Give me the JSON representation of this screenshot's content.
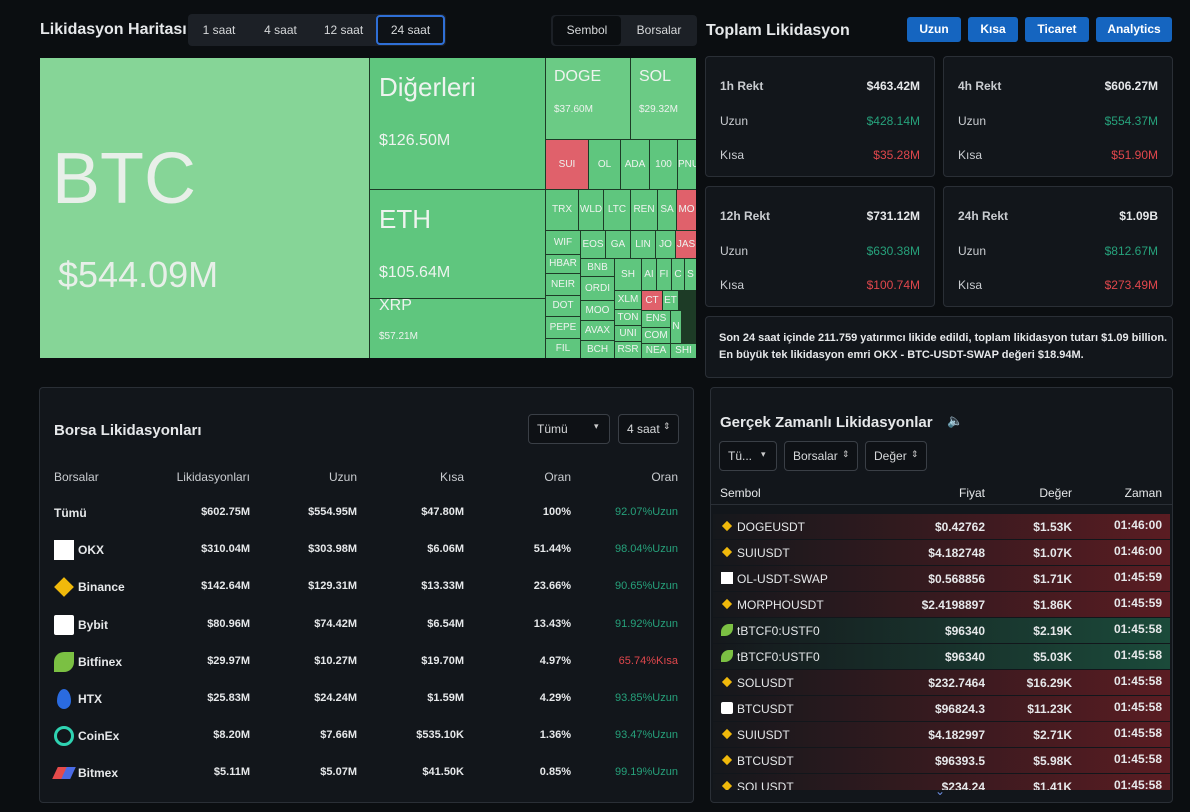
{
  "header": {
    "title": "Likidasyon Haritası",
    "time_tabs": [
      "1 saat",
      "4 saat",
      "12 saat",
      "24 saat"
    ],
    "view_tabs": [
      "Sembol",
      "Borsalar"
    ],
    "total_title": "Toplam Likidasyon",
    "buttons": [
      "Uzun",
      "Kısa",
      "Ticaret",
      "Analytics"
    ]
  },
  "treemap": {
    "tiles": [
      {
        "label": "BTC",
        "value": "$544.09M",
        "color": "#86d597"
      },
      {
        "label": "Diğerleri",
        "value": "$126.50M",
        "color": "#5fc67e"
      },
      {
        "label": "ETH",
        "value": "$105.64M",
        "color": "#5fc67e"
      },
      {
        "label": "XRP",
        "value": "$57.21M",
        "color": "#5fc67e"
      },
      {
        "label": "DOGE",
        "value": "$37.60M",
        "color": "#6bcb85"
      },
      {
        "label": "SOL",
        "value": "$29.32M",
        "color": "#6bcb85"
      },
      {
        "label": "SUI",
        "color": "#e0616b"
      },
      {
        "label": "OL",
        "color": "#5fc67e"
      },
      {
        "label": "ADA",
        "color": "#5fc67e"
      },
      {
        "label": "100",
        "color": "#5fc67e"
      },
      {
        "label": "PNU",
        "color": "#5fc67e"
      },
      {
        "label": "TRX",
        "color": "#5fc67e"
      },
      {
        "label": "WLD",
        "color": "#5fc67e"
      },
      {
        "label": "LTC",
        "color": "#5fc67e"
      },
      {
        "label": "REN",
        "color": "#5fc67e"
      },
      {
        "label": "SA",
        "color": "#5fc67e"
      },
      {
        "label": "MO",
        "color": "#e0616b"
      },
      {
        "label": "WIF",
        "color": "#5fc67e"
      },
      {
        "label": "EOS",
        "color": "#5fc67e"
      },
      {
        "label": "GA",
        "color": "#5fc67e"
      },
      {
        "label": "LIN",
        "color": "#5fc67e"
      },
      {
        "label": "JO",
        "color": "#5fc67e"
      },
      {
        "label": "JAS",
        "color": "#e0616b"
      },
      {
        "label": "HBAR",
        "color": "#5fc67e"
      },
      {
        "label": "NEIR",
        "color": "#5fc67e"
      },
      {
        "label": "DOT",
        "color": "#5fc67e"
      },
      {
        "label": "PEPE",
        "color": "#5fc67e"
      },
      {
        "label": "FIL",
        "color": "#5fc67e"
      },
      {
        "label": "BNB",
        "color": "#5fc67e"
      },
      {
        "label": "ORDI",
        "color": "#5fc67e"
      },
      {
        "label": "MOO",
        "color": "#5fc67e"
      },
      {
        "label": "AVAX",
        "color": "#5fc67e"
      },
      {
        "label": "BCH",
        "color": "#5fc67e"
      },
      {
        "label": "SH",
        "color": "#5fc67e"
      },
      {
        "label": "AI",
        "color": "#5fc67e"
      },
      {
        "label": "FI",
        "color": "#5fc67e"
      },
      {
        "label": "C",
        "color": "#5fc67e"
      },
      {
        "label": "S",
        "color": "#5fc67e"
      },
      {
        "label": "XLM",
        "color": "#5fc67e"
      },
      {
        "label": "CT",
        "color": "#e0616b"
      },
      {
        "label": "ET",
        "color": "#5fc67e"
      },
      {
        "label": "TON",
        "color": "#5fc67e"
      },
      {
        "label": "UNI",
        "color": "#5fc67e"
      },
      {
        "label": "RSR",
        "color": "#5fc67e"
      },
      {
        "label": "ENS",
        "color": "#5fc67e"
      },
      {
        "label": "N",
        "color": "#5fc67e"
      },
      {
        "label": "COM",
        "color": "#5fc67e"
      },
      {
        "label": "NEA",
        "color": "#5fc67e"
      },
      {
        "label": "SHI",
        "color": "#5fc67e"
      }
    ]
  },
  "cards": [
    {
      "title": "1h Rekt",
      "total": "$463.42M",
      "long_label": "Uzun",
      "long": "$428.14M",
      "short_label": "Kısa",
      "short": "$35.28M"
    },
    {
      "title": "4h Rekt",
      "total": "$606.27M",
      "long_label": "Uzun",
      "long": "$554.37M",
      "short_label": "Kısa",
      "short": "$51.90M"
    },
    {
      "title": "12h Rekt",
      "total": "$731.12M",
      "long_label": "Uzun",
      "long": "$630.38M",
      "short_label": "Kısa",
      "short": "$100.74M"
    },
    {
      "title": "24h Rekt",
      "total": "$1.09B",
      "long_label": "Uzun",
      "long": "$812.67M",
      "short_label": "Kısa",
      "short": "$273.49M"
    }
  ],
  "summary": [
    "Son 24 saat içinde 211.759 yatırımcı likide edildi, toplam likidasyon tutarı $1.09 billion.",
    "En büyük tek likidasyon emri OKX - BTC-USDT-SWAP değeri $18.94M."
  ],
  "exchange_table": {
    "title": "Borsa Likidasyonları",
    "filters": [
      "Tümü",
      "4 saat"
    ],
    "columns": [
      "Borsalar",
      "Likidasyonları",
      "Uzun",
      "Kısa",
      "Oran",
      "Oran"
    ],
    "rows": [
      {
        "name": "Tümü",
        "total": "$602.75M",
        "long": "$554.95M",
        "short": "$47.80M",
        "share": "100%",
        "ratio": "92.07%Uzun",
        "ratio_color": "#26a17b"
      },
      {
        "name": "OKX",
        "total": "$310.04M",
        "long": "$303.98M",
        "short": "$6.06M",
        "share": "51.44%",
        "ratio": "98.04%Uzun",
        "ratio_color": "#26a17b"
      },
      {
        "name": "Binance",
        "total": "$142.64M",
        "long": "$129.31M",
        "short": "$13.33M",
        "share": "23.66%",
        "ratio": "90.65%Uzun",
        "ratio_color": "#26a17b"
      },
      {
        "name": "Bybit",
        "total": "$80.96M",
        "long": "$74.42M",
        "short": "$6.54M",
        "share": "13.43%",
        "ratio": "91.92%Uzun",
        "ratio_color": "#26a17b"
      },
      {
        "name": "Bitfinex",
        "total": "$29.97M",
        "long": "$10.27M",
        "short": "$19.70M",
        "share": "4.97%",
        "ratio": "65.74%Kısa",
        "ratio_color": "#e0474c"
      },
      {
        "name": "HTX",
        "total": "$25.83M",
        "long": "$24.24M",
        "short": "$1.59M",
        "share": "4.29%",
        "ratio": "93.85%Uzun",
        "ratio_color": "#26a17b"
      },
      {
        "name": "CoinEx",
        "total": "$8.20M",
        "long": "$7.66M",
        "short": "$535.10K",
        "share": "1.36%",
        "ratio": "93.47%Uzun",
        "ratio_color": "#26a17b"
      },
      {
        "name": "Bitmex",
        "total": "$5.11M",
        "long": "$5.07M",
        "short": "$41.50K",
        "share": "0.85%",
        "ratio": "99.19%Uzun",
        "ratio_color": "#26a17b"
      }
    ]
  },
  "realtime": {
    "title": "Gerçek Zamanlı Likidasyonlar",
    "filters": [
      "Tü...",
      "Borsalar",
      "Değer"
    ],
    "columns": [
      "Sembol",
      "Fiyat",
      "Değer",
      "Zaman"
    ],
    "rows": [
      {
        "symbol": "DOGEUSDT",
        "price": "$0.42762",
        "value": "$1.53K",
        "time": "01:46:00",
        "color": "#5a1c22"
      },
      {
        "symbol": "SUIUSDT",
        "price": "$4.182748",
        "value": "$1.07K",
        "time": "01:46:00",
        "color": "#5a1c22"
      },
      {
        "symbol": "OL-USDT-SWAP",
        "price": "$0.568856",
        "value": "$1.71K",
        "time": "01:45:59",
        "color": "#5a1c22"
      },
      {
        "symbol": "MORPHOUSDT",
        "price": "$2.4198897",
        "value": "$1.86K",
        "time": "01:45:59",
        "color": "#5a1c22"
      },
      {
        "symbol": "tBTCF0:USTF0",
        "price": "$96340",
        "value": "$2.19K",
        "time": "01:45:58",
        "color": "#1b4a3a"
      },
      {
        "symbol": "tBTCF0:USTF0",
        "price": "$96340",
        "value": "$5.03K",
        "time": "01:45:58",
        "color": "#1b4a3a"
      },
      {
        "symbol": "SOLUSDT",
        "price": "$232.7464",
        "value": "$16.29K",
        "time": "01:45:58",
        "color": "#5a1c22"
      },
      {
        "symbol": "BTCUSDT",
        "price": "$96824.3",
        "value": "$11.23K",
        "time": "01:45:58",
        "color": "#5a1c22"
      },
      {
        "symbol": "SUIUSDT",
        "price": "$4.182997",
        "value": "$2.71K",
        "time": "01:45:58",
        "color": "#5a1c22"
      },
      {
        "symbol": "BTCUSDT",
        "price": "$96393.5",
        "value": "$5.98K",
        "time": "01:45:58",
        "color": "#5a1c22"
      },
      {
        "symbol": "SOLUSDT",
        "price": "$234.24",
        "value": "$1.41K",
        "time": "01:45:58",
        "color": "#5a1c22"
      }
    ]
  }
}
